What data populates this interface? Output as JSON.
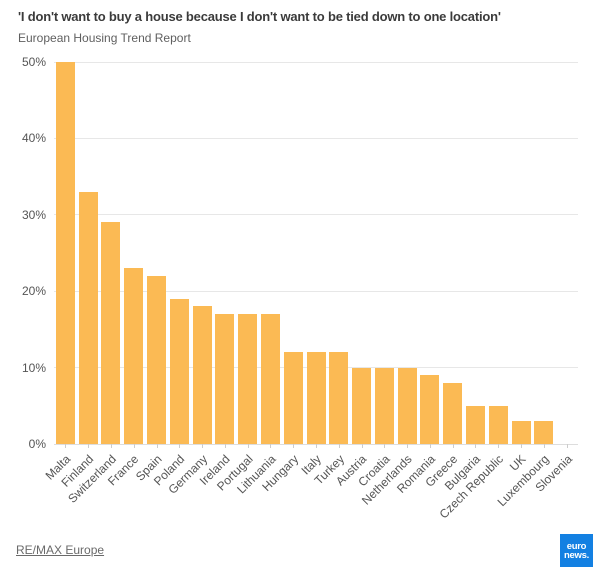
{
  "chart_data": {
    "type": "bar",
    "title": "'I don't want to buy a house because I don't want to be tied down to one location'",
    "subtitle": "European Housing Trend Report",
    "categories": [
      "Malta",
      "Finland",
      "Switzerland",
      "France",
      "Spain",
      "Poland",
      "Germany",
      "Ireland",
      "Portugal",
      "Lithuania",
      "Hungary",
      "Italy",
      "Turkey",
      "Austria",
      "Croatia",
      "Netherlands",
      "Romania",
      "Greece",
      "Bulgaria",
      "Czech Republic",
      "UK",
      "Luxembourg",
      "Slovenia"
    ],
    "values": [
      50,
      33,
      29,
      23,
      22,
      19,
      18,
      17,
      17,
      17,
      12,
      12,
      12,
      10,
      10,
      10,
      9,
      8,
      5,
      5,
      3,
      3,
      0
    ],
    "unit": "%",
    "xlabel": "",
    "ylabel": "",
    "ylim": [
      0,
      50
    ],
    "yticks": [
      0,
      10,
      20,
      30,
      40,
      50
    ],
    "ytick_labels": [
      "0%",
      "10%",
      "20%",
      "30%",
      "40%",
      "50%"
    ],
    "grid": true,
    "legend": false,
    "bar_color": "#FBBA54",
    "gridline_color": "#E7E7E7",
    "axis_label_color": "#555555"
  },
  "footer": {
    "source_label": "RE/MAX Europe",
    "logo": {
      "line1": "euro",
      "line2": "news.",
      "bg_color": "#1380E2",
      "text_color": "#FFFFFF"
    }
  }
}
